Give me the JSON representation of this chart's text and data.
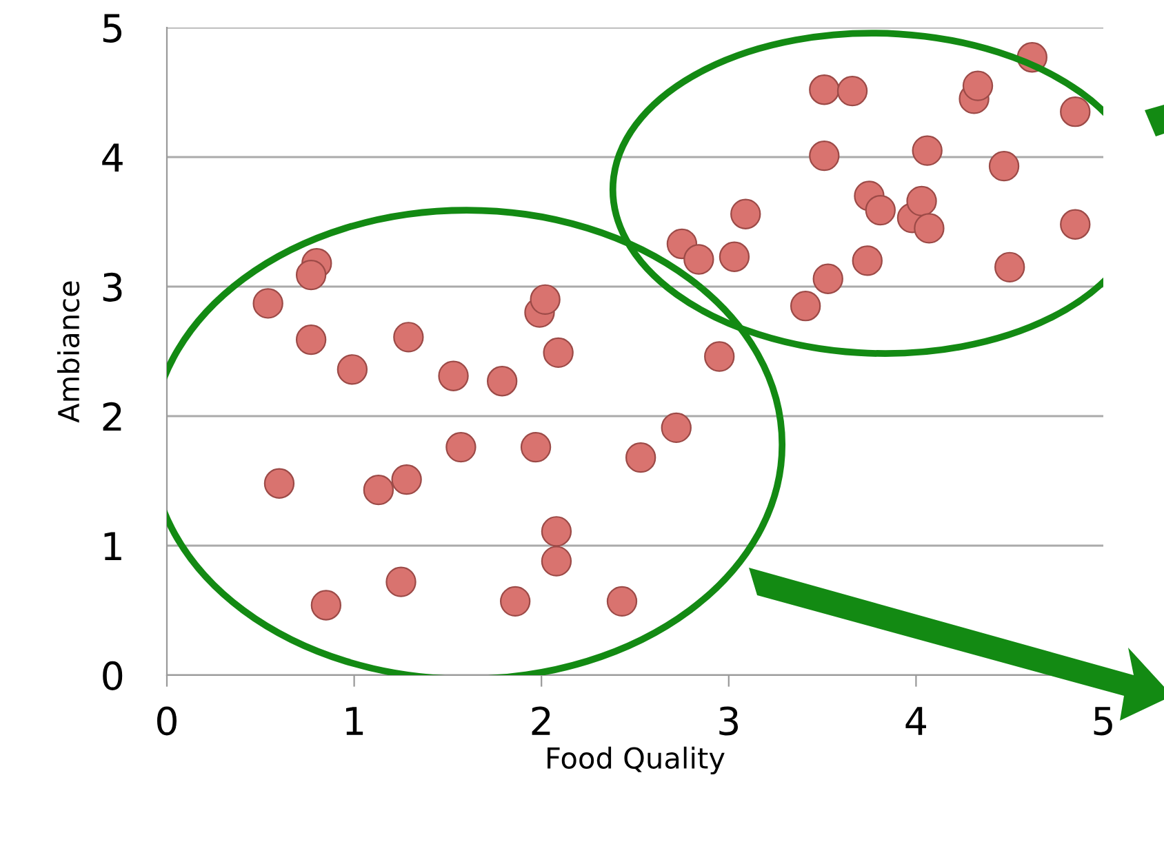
{
  "chart_data": {
    "type": "scatter",
    "xlabel": "Food Quality",
    "ylabel": "Ambiance",
    "xlim": [
      0,
      5
    ],
    "ylim": [
      0,
      5
    ],
    "xticks": [
      0,
      1,
      2,
      3,
      4,
      5
    ],
    "yticks": [
      0,
      1,
      2,
      3,
      4,
      5
    ],
    "grid": "y",
    "marker": "circle",
    "series": [
      {
        "color": "#d9736f",
        "x": [
          0.54,
          0.8,
          0.77,
          0.77,
          0.99,
          0.6,
          0.85,
          1.13,
          1.28,
          1.29,
          1.25,
          1.53,
          1.57,
          1.79,
          1.86,
          1.97,
          1.99,
          2.02,
          2.09,
          2.08,
          2.08,
          2.43,
          2.53,
          2.72,
          2.95,
          2.75,
          2.84,
          3.03,
          3.09,
          3.41,
          3.53,
          3.74,
          3.51,
          3.51,
          3.66,
          3.75,
          3.81,
          3.98,
          4.03,
          4.06,
          4.07,
          4.31,
          4.33,
          4.47,
          4.5,
          4.62,
          4.85,
          4.85
        ],
        "values": [
          2.87,
          3.18,
          3.09,
          2.59,
          2.36,
          1.48,
          0.54,
          1.43,
          1.51,
          2.61,
          0.72,
          2.31,
          1.76,
          2.27,
          0.57,
          1.76,
          2.8,
          2.9,
          2.49,
          1.11,
          0.88,
          0.57,
          1.68,
          1.91,
          2.46,
          3.33,
          3.21,
          3.23,
          3.56,
          2.85,
          3.06,
          3.2,
          4.01,
          4.52,
          4.51,
          3.7,
          3.59,
          3.53,
          3.66,
          4.05,
          3.45,
          4.45,
          4.55,
          3.93,
          3.15,
          4.77,
          4.35,
          3.48
        ]
      }
    ]
  }
}
